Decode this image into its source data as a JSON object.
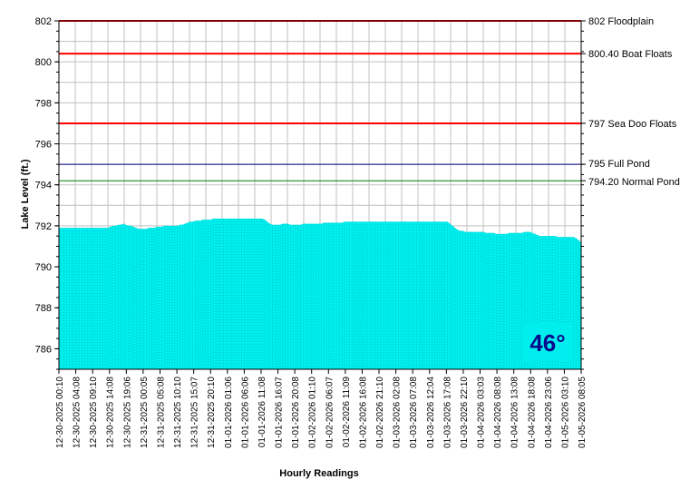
{
  "chart_data": {
    "type": "area",
    "ylabel": "Lake Level (ft.)",
    "xlabel": "Hourly Readings",
    "ylim": [
      785,
      802
    ],
    "y_ticks": [
      786,
      788,
      790,
      792,
      794,
      796,
      798,
      800,
      802
    ],
    "grid": true,
    "fill_color": "#00eeee",
    "reference_lines": [
      {
        "value": 802,
        "label": "802 Floodplain",
        "color": "#ff0000"
      },
      {
        "value": 800.4,
        "label": "800.40 Boat Floats",
        "color": "#ff0000"
      },
      {
        "value": 797,
        "label": "797 Sea Doo Floats",
        "color": "#ff0000"
      },
      {
        "value": 795,
        "label": "795 Full Pond",
        "color": "#000080"
      },
      {
        "value": 794.2,
        "label": "794.20 Normal Pond",
        "color": "#008000"
      }
    ],
    "x_tick_labels": [
      "12-30-2025 00:10",
      "12-30-2025 04:08",
      "12-30-2025 09:10",
      "12-30-2025 14:08",
      "12-30-2025 19:06",
      "12-31-2025 00:05",
      "12-31-2025 05:08",
      "12-31-2025 10:10",
      "12-31-2025 15:07",
      "12-31-2025 20:10",
      "01-01-2026 01:06",
      "01-01-2026 06:06",
      "01-01-2026 11:08",
      "01-01-2026 16:07",
      "01-01-2026 20:08",
      "01-02-2026 01:10",
      "01-02-2026 06:07",
      "01-02-2026 11:09",
      "01-02-2026 16:08",
      "01-02-2026 21:10",
      "01-03-2026 02:08",
      "01-03-2026 07:08",
      "01-03-2026 12:04",
      "01-03-2026 17:08",
      "01-03-2026 22:10",
      "01-04-2026 03:03",
      "01-04-2026 08:08",
      "01-04-2026 13:08",
      "01-04-2026 18:08",
      "01-04-2026 23:06",
      "01-05-2026 03:10",
      "01-05-2026 08:05"
    ],
    "series": [
      {
        "values": [
          791.9,
          791.9,
          791.9,
          791.9,
          791.9,
          791.9,
          791.9,
          791.9,
          791.9,
          791.9,
          791.9,
          791.9,
          791.9,
          791.9,
          791.9,
          791.9,
          791.9,
          791.9,
          791.9,
          791.9,
          791.95,
          792.0,
          792.0,
          792.05,
          792.05,
          792.1,
          792.05,
          792.0,
          792.0,
          791.95,
          791.9,
          791.85,
          791.85,
          791.85,
          791.85,
          791.9,
          791.9,
          791.9,
          791.95,
          791.95,
          791.95,
          792.0,
          792.0,
          792.0,
          792.0,
          792.0,
          792.0,
          792.05,
          792.05,
          792.1,
          792.15,
          792.2,
          792.2,
          792.25,
          792.25,
          792.25,
          792.3,
          792.3,
          792.3,
          792.3,
          792.35,
          792.35,
          792.35,
          792.35,
          792.35,
          792.35,
          792.35,
          792.35,
          792.35,
          792.35,
          792.35,
          792.35,
          792.35,
          792.35,
          792.35,
          792.35,
          792.35,
          792.35,
          792.35,
          792.35,
          792.3,
          792.2,
          792.1,
          792.05,
          792.05,
          792.05,
          792.05,
          792.1,
          792.1,
          792.1,
          792.05,
          792.05,
          792.05,
          792.05,
          792.05,
          792.1,
          792.1,
          792.1,
          792.1,
          792.1,
          792.1,
          792.1,
          792.1,
          792.15,
          792.15,
          792.15,
          792.15,
          792.15,
          792.15,
          792.15,
          792.15,
          792.2,
          792.2,
          792.2,
          792.2,
          792.2,
          792.2,
          792.2,
          792.2,
          792.2,
          792.2,
          792.2,
          792.2,
          792.2,
          792.2,
          792.2,
          792.2,
          792.2,
          792.2,
          792.2,
          792.2,
          792.2,
          792.2,
          792.2,
          792.2,
          792.2,
          792.2,
          792.2,
          792.2,
          792.2,
          792.2,
          792.2,
          792.2,
          792.2,
          792.2,
          792.2,
          792.2,
          792.2,
          792.2,
          792.2,
          792.2,
          792.2,
          792.1,
          792.0,
          791.9,
          791.8,
          791.75,
          791.75,
          791.7,
          791.7,
          791.7,
          791.7,
          791.7,
          791.7,
          791.7,
          791.7,
          791.65,
          791.65,
          791.65,
          791.65,
          791.6,
          791.6,
          791.6,
          791.6,
          791.6,
          791.65,
          791.65,
          791.65,
          791.65,
          791.65,
          791.65,
          791.7,
          791.7,
          791.7,
          791.65,
          791.6,
          791.55,
          791.5,
          791.5,
          791.5,
          791.5,
          791.5,
          791.5,
          791.5,
          791.45,
          791.45,
          791.45,
          791.45,
          791.45,
          791.45,
          791.45,
          791.4,
          791.3,
          791.2
        ]
      }
    ]
  },
  "temperature": "46°"
}
